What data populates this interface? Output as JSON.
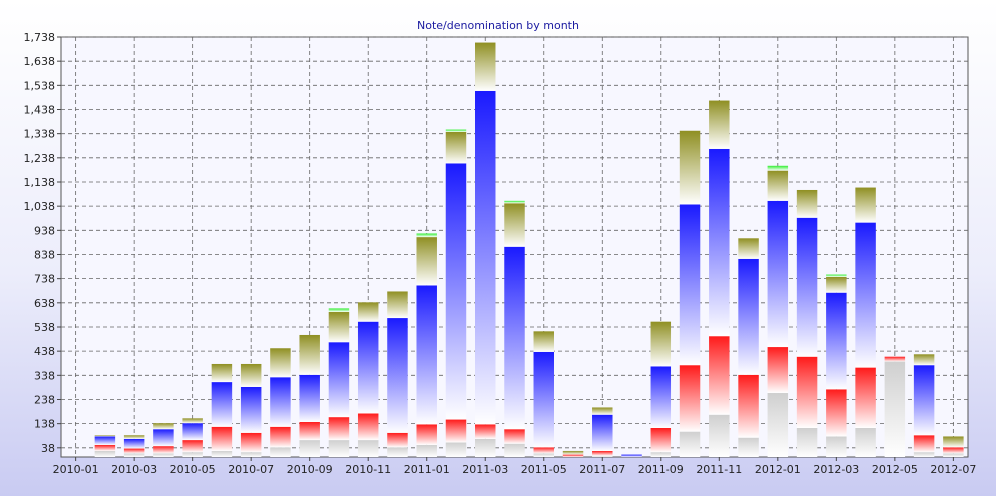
{
  "chart_data": {
    "type": "bar",
    "stacked": true,
    "title": "Note/denomination by month",
    "xlabel": "",
    "ylabel": "",
    "ylim": [
      0,
      1738
    ],
    "y_ticks": [
      38,
      138,
      238,
      338,
      438,
      538,
      638,
      738,
      838,
      938,
      1038,
      1138,
      1238,
      1338,
      1438,
      1538,
      1638,
      1738
    ],
    "y_tick_labels": [
      "38",
      "138",
      "238",
      "338",
      "438",
      "538",
      "638",
      "738",
      "838",
      "938",
      "1,038",
      "1,138",
      "1,238",
      "1,338",
      "1,438",
      "1,538",
      "1,638",
      "1,738"
    ],
    "x_tick_labels": [
      "2010-01",
      "2010-03",
      "2010-05",
      "2010-07",
      "2010-09",
      "2010-11",
      "2011-01",
      "2011-03",
      "2011-05",
      "2011-07",
      "2011-09",
      "2011-11",
      "2012-01",
      "2012-03",
      "2012-05",
      "2012-07"
    ],
    "categories": [
      "2010-01",
      "2010-02",
      "2010-03",
      "2010-04",
      "2010-05",
      "2010-06",
      "2010-07",
      "2010-08",
      "2010-09",
      "2010-10",
      "2010-11",
      "2010-12",
      "2011-01",
      "2011-02",
      "2011-03",
      "2011-04",
      "2011-05",
      "2011-06",
      "2011-07",
      "2011-08",
      "2011-09",
      "2011-10",
      "2011-11",
      "2011-12",
      "2012-01",
      "2012-02",
      "2012-03",
      "2012-04",
      "2012-05",
      "2012-06",
      "2012-07"
    ],
    "grid": true,
    "legend": "none",
    "series": [
      {
        "color": "#cfcfcf",
        "values": [
          0,
          25,
          15,
          15,
          20,
          25,
          20,
          40,
          70,
          70,
          70,
          40,
          50,
          60,
          75,
          55,
          15,
          0,
          5,
          0,
          20,
          105,
          175,
          80,
          265,
          120,
          85,
          120,
          395,
          20,
          15
        ]
      },
      {
        "color": "#ff1a1a",
        "values": [
          0,
          25,
          20,
          30,
          50,
          100,
          80,
          85,
          75,
          95,
          110,
          60,
          85,
          95,
          60,
          60,
          25,
          10,
          20,
          0,
          100,
          275,
          325,
          260,
          190,
          295,
          195,
          250,
          20,
          70,
          25
        ]
      },
      {
        "color": "#1a1aff",
        "values": [
          0,
          35,
          40,
          70,
          70,
          185,
          190,
          205,
          195,
          310,
          380,
          475,
          575,
          1060,
          1380,
          755,
          395,
          0,
          150,
          10,
          255,
          665,
          775,
          480,
          605,
          575,
          400,
          600,
          0,
          290,
          0
        ]
      },
      {
        "color": "#8f8f22",
        "values": [
          0,
          5,
          15,
          25,
          20,
          75,
          95,
          120,
          165,
          125,
          80,
          110,
          200,
          130,
          200,
          180,
          85,
          15,
          30,
          0,
          185,
          305,
          200,
          85,
          125,
          115,
          65,
          145,
          0,
          45,
          45
        ]
      },
      {
        "color": "#33ee33",
        "values": [
          0,
          0,
          0,
          0,
          0,
          0,
          0,
          0,
          0,
          15,
          0,
          0,
          15,
          10,
          0,
          10,
          0,
          0,
          0,
          0,
          0,
          0,
          0,
          0,
          20,
          0,
          10,
          0,
          0,
          0,
          0
        ]
      }
    ]
  }
}
